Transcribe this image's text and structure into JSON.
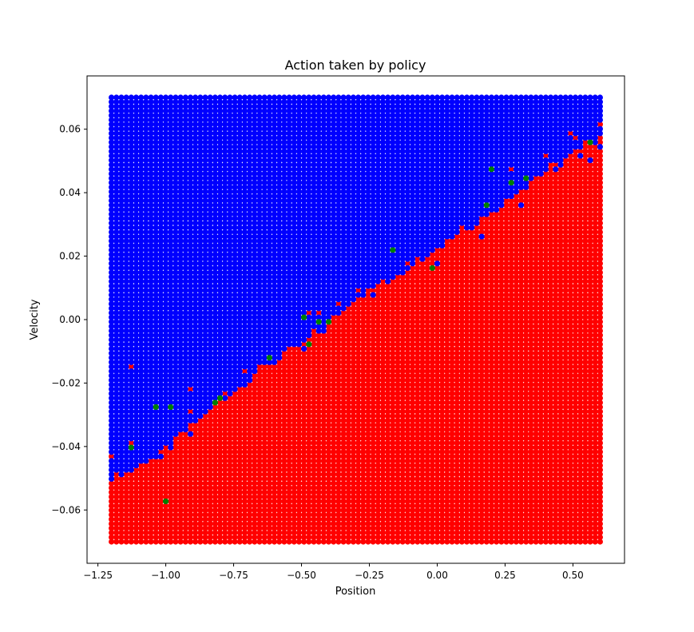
{
  "chart_data": {
    "type": "scatter",
    "title": "Action taken by policy",
    "xlabel": "Position",
    "ylabel": "Velocity",
    "xlim": [
      -1.29,
      0.69
    ],
    "ylim": [
      -0.0768,
      0.0768
    ],
    "xticks": [
      -1.25,
      -1.0,
      -0.75,
      -0.5,
      -0.25,
      0.0,
      0.25,
      0.5
    ],
    "xtick_labels": [
      "−1.25",
      "−1.00",
      "−0.75",
      "−0.50",
      "−0.25",
      "0.00",
      "0.25",
      "0.50"
    ],
    "yticks": [
      -0.06,
      -0.04,
      -0.02,
      0.0,
      0.02,
      0.04,
      0.06
    ],
    "ytick_labels": [
      "−0.06",
      "−0.04",
      "−0.02",
      "0.00",
      "0.02",
      "0.04",
      "0.06"
    ],
    "grid": {
      "x_min": -1.2,
      "x_max": 0.6,
      "x_count": 100,
      "y_min": -0.07,
      "y_max": 0.07,
      "y_count": 100
    },
    "classes": [
      {
        "action": 0,
        "color": "#ff0000"
      },
      {
        "action": 1,
        "color": "#008000"
      },
      {
        "action": 2,
        "color": "#0000ff"
      }
    ],
    "decision_boundary": {
      "points": [
        [
          -1.2,
          -0.05
        ],
        [
          -1.1,
          -0.046
        ],
        [
          -1.0,
          -0.041
        ],
        [
          -0.9,
          -0.033
        ],
        [
          -0.8,
          -0.026
        ],
        [
          -0.7,
          -0.019
        ],
        [
          -0.6,
          -0.012
        ],
        [
          -0.5,
          -0.008
        ],
        [
          -0.4,
          -0.001
        ],
        [
          -0.3,
          0.007
        ],
        [
          -0.2,
          0.012
        ],
        [
          -0.1,
          0.017
        ],
        [
          0.0,
          0.023
        ],
        [
          0.1,
          0.029
        ],
        [
          0.2,
          0.034
        ],
        [
          0.3,
          0.041
        ],
        [
          0.4,
          0.047
        ],
        [
          0.5,
          0.052
        ],
        [
          0.6,
          0.058
        ]
      ],
      "below": 0,
      "above": 2
    },
    "exceptions": [
      {
        "x": -1.136,
        "y": -0.0151,
        "action": 0
      },
      {
        "x": -1.209,
        "y": -0.0434,
        "action": 0
      },
      {
        "x": -1.136,
        "y": -0.0392,
        "action": 0
      },
      {
        "x": -0.918,
        "y": -0.0222,
        "action": 0
      },
      {
        "x": -0.918,
        "y": -0.0293,
        "action": 0
      },
      {
        "x": -0.773,
        "y": -0.0236,
        "action": 0
      },
      {
        "x": -0.718,
        "y": -0.0166,
        "action": 0
      },
      {
        "x": -0.464,
        "y": 0.0019,
        "action": 0
      },
      {
        "x": -0.445,
        "y": 0.0019,
        "action": 0
      },
      {
        "x": -0.355,
        "y": 0.0047,
        "action": 0
      },
      {
        "x": -0.282,
        "y": 0.0089,
        "action": 0
      },
      {
        "x": -0.118,
        "y": 0.0175,
        "action": 0
      },
      {
        "x": 0.082,
        "y": 0.0288,
        "action": 0
      },
      {
        "x": 0.264,
        "y": 0.0472,
        "action": 0
      },
      {
        "x": 0.355,
        "y": 0.0443,
        "action": 0
      },
      {
        "x": 0.409,
        "y": 0.0514,
        "action": 0
      },
      {
        "x": 0.482,
        "y": 0.0585,
        "action": 0
      },
      {
        "x": 0.518,
        "y": 0.0571,
        "action": 0
      },
      {
        "x": 0.591,
        "y": 0.0613,
        "action": 0
      },
      {
        "x": -1.118,
        "y": -0.0434,
        "action": 2
      },
      {
        "x": -1.082,
        "y": -0.0448,
        "action": 2
      },
      {
        "x": -1.045,
        "y": -0.0434,
        "action": 2
      },
      {
        "x": -1.027,
        "y": -0.0434,
        "action": 2
      },
      {
        "x": -0.918,
        "y": -0.0363,
        "action": 2
      },
      {
        "x": -0.882,
        "y": -0.0307,
        "action": 2
      },
      {
        "x": -0.845,
        "y": -0.0278,
        "action": 2
      },
      {
        "x": -0.591,
        "y": -0.0138,
        "action": 2
      },
      {
        "x": -0.482,
        "y": -0.0095,
        "action": 2
      },
      {
        "x": -0.427,
        "y": -0.0039,
        "action": 2
      },
      {
        "x": -0.245,
        "y": 0.0075,
        "action": 2
      },
      {
        "x": -0.173,
        "y": 0.0118,
        "action": 2
      },
      {
        "x": -0.136,
        "y": 0.0146,
        "action": 2
      },
      {
        "x": -0.009,
        "y": 0.0175,
        "action": 2
      },
      {
        "x": 0.155,
        "y": 0.026,
        "action": 2
      },
      {
        "x": 0.3,
        "y": 0.0358,
        "action": 2
      },
      {
        "x": 0.445,
        "y": 0.0467,
        "action": 2
      },
      {
        "x": 0.536,
        "y": 0.0519,
        "action": 2
      },
      {
        "x": 0.555,
        "y": 0.0505,
        "action": 2
      },
      {
        "x": 0.591,
        "y": 0.0543,
        "action": 2
      },
      {
        "x": -1.045,
        "y": -0.0278,
        "action": 1
      },
      {
        "x": -1.136,
        "y": -0.0406,
        "action": 1
      },
      {
        "x": -0.973,
        "y": -0.0278,
        "action": 1
      },
      {
        "x": -0.991,
        "y": -0.0576,
        "action": 1
      },
      {
        "x": -0.827,
        "y": -0.0264,
        "action": 1
      },
      {
        "x": -0.791,
        "y": -0.025,
        "action": 1
      },
      {
        "x": -0.627,
        "y": -0.0123,
        "action": 1
      },
      {
        "x": -0.482,
        "y": 0.0005,
        "action": 1
      },
      {
        "x": -0.464,
        "y": -0.0081,
        "action": 1
      },
      {
        "x": -0.445,
        "y": -0.001,
        "action": 1
      },
      {
        "x": -0.409,
        "y": -0.001,
        "action": 1
      },
      {
        "x": -0.155,
        "y": 0.0217,
        "action": 1
      },
      {
        "x": -0.027,
        "y": 0.0161,
        "action": 1
      },
      {
        "x": 0.173,
        "y": 0.0358,
        "action": 1
      },
      {
        "x": 0.191,
        "y": 0.0472,
        "action": 1
      },
      {
        "x": 0.264,
        "y": 0.0429,
        "action": 1
      },
      {
        "x": 0.336,
        "y": 0.0443,
        "action": 1
      },
      {
        "x": 0.555,
        "y": 0.0556,
        "action": 1
      }
    ]
  }
}
